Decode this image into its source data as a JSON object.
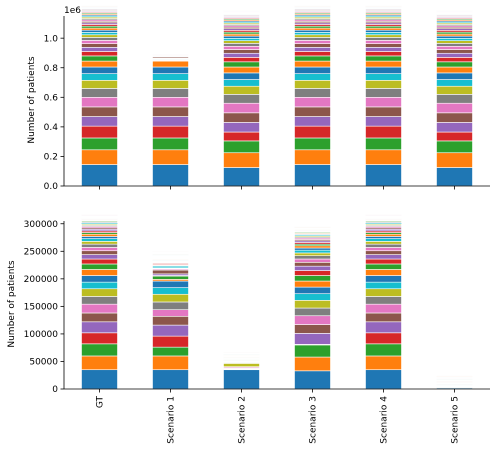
{
  "chart_data": [
    {
      "type": "bar",
      "stacked": true,
      "ylabel": "Number of patients",
      "ylim": [
        0,
        1150000
      ],
      "yticks": [
        0,
        200000,
        400000,
        600000,
        800000,
        1000000
      ],
      "ytick_labels": [
        "0.0",
        "0.2",
        "0.4",
        "0.6",
        "0.8",
        "1.0"
      ],
      "offset_text": "1e6",
      "categories": [
        "GT",
        "Scenario 1",
        "Scenario 2",
        "Scenario 3",
        "Scenario 4",
        "Scenario 5"
      ],
      "segments": [
        [
          145000,
          100000,
          80000,
          80000,
          65000,
          65000,
          65000,
          60000,
          55000,
          45000,
          45000,
          40000,
          35000,
          30000,
          28000,
          25000,
          22000,
          20000,
          18000,
          16000,
          15000,
          14000,
          13000,
          12000,
          11000,
          10000,
          10000,
          9000,
          9000,
          8000,
          8000,
          7000,
          7000,
          6000,
          6000,
          5000,
          5000,
          5000,
          4000,
          4000,
          4000,
          3000,
          3000,
          3000,
          2000,
          2000
        ],
        [
          145000,
          100000,
          80000,
          80000,
          65000,
          65000,
          65000,
          60000,
          55000,
          45000,
          45000,
          40000,
          1000,
          1000,
          1000,
          2000,
          2000,
          1000,
          1000,
          5000,
          1000,
          1000,
          3000,
          1000,
          1000,
          8000,
          2000,
          1000,
          1000,
          1000,
          1000,
          1000,
          1000,
          1000,
          1000,
          1000,
          1000,
          1000,
          1000,
          1000,
          1000,
          1000,
          1000,
          1000,
          1000,
          1000
        ],
        [
          125000,
          100000,
          80000,
          60000,
          65000,
          65000,
          65000,
          60000,
          55000,
          45000,
          45000,
          40000,
          35000,
          30000,
          28000,
          25000,
          22000,
          20000,
          18000,
          16000,
          15000,
          14000,
          13000,
          12000,
          11000,
          10000,
          10000,
          9000,
          9000,
          8000,
          8000,
          7000,
          7000,
          6000,
          6000,
          5000,
          5000,
          5000,
          4000,
          4000,
          4000,
          3000,
          3000,
          3000,
          2000,
          2000
        ],
        [
          145000,
          100000,
          80000,
          80000,
          65000,
          65000,
          65000,
          60000,
          55000,
          45000,
          45000,
          40000,
          35000,
          30000,
          28000,
          25000,
          22000,
          20000,
          18000,
          16000,
          15000,
          14000,
          13000,
          12000,
          11000,
          10000,
          10000,
          9000,
          9000,
          8000,
          8000,
          7000,
          7000,
          6000,
          6000,
          5000,
          5000,
          5000,
          4000,
          4000,
          4000,
          3000,
          3000,
          3000,
          2000,
          2000
        ],
        [
          145000,
          100000,
          80000,
          80000,
          65000,
          65000,
          65000,
          60000,
          55000,
          45000,
          45000,
          40000,
          35000,
          30000,
          28000,
          25000,
          22000,
          20000,
          18000,
          16000,
          15000,
          14000,
          13000,
          12000,
          11000,
          10000,
          10000,
          9000,
          9000,
          8000,
          8000,
          7000,
          7000,
          6000,
          6000,
          5000,
          5000,
          5000,
          4000,
          4000,
          4000,
          3000,
          3000,
          3000,
          2000,
          2000
        ],
        [
          125000,
          100000,
          80000,
          60000,
          65000,
          65000,
          65000,
          60000,
          55000,
          45000,
          45000,
          40000,
          35000,
          30000,
          28000,
          25000,
          22000,
          20000,
          18000,
          16000,
          15000,
          14000,
          13000,
          12000,
          11000,
          10000,
          10000,
          9000,
          9000,
          8000,
          8000,
          7000,
          7000,
          6000,
          6000,
          5000,
          5000,
          5000,
          4000,
          4000,
          4000,
          3000,
          3000,
          3000,
          2000,
          2000
        ]
      ]
    },
    {
      "type": "bar",
      "stacked": true,
      "ylabel": "Number of patients",
      "ylim": [
        0,
        305000
      ],
      "yticks": [
        0,
        50000,
        100000,
        150000,
        200000,
        250000,
        300000
      ],
      "ytick_labels": [
        "0",
        "50000",
        "100000",
        "150000",
        "200000",
        "250000",
        "300000"
      ],
      "categories": [
        "GT",
        "Scenario 1",
        "Scenario 2",
        "Scenario 3",
        "Scenario 4",
        "Scenario 5"
      ],
      "segments": [
        [
          35000,
          25000,
          22000,
          20000,
          20000,
          16000,
          16000,
          14000,
          14000,
          12000,
          12000,
          11000,
          10000,
          9000,
          8000,
          7000,
          6000,
          6000,
          5000,
          5000,
          4000,
          4000,
          3000,
          3000,
          3000,
          2500,
          2500,
          2000,
          2000,
          2000,
          1500,
          1500,
          1500,
          1000,
          1000,
          1000,
          1000,
          1000,
          1000,
          1000,
          800,
          800,
          800,
          800,
          800,
          800
        ],
        [
          35000,
          25000,
          16000,
          20000,
          20000,
          16000,
          12000,
          14000,
          14000,
          12000,
          12000,
          3000,
          6000,
          1000,
          3000,
          7000,
          2000,
          1000,
          1000,
          3000,
          1000,
          1000,
          1000,
          2000,
          1000,
          1000,
          1000,
          1000,
          1000,
          1000,
          1000,
          1000,
          1000,
          1000,
          1000,
          1000,
          1000,
          1000,
          1000,
          1000,
          800,
          800,
          800,
          800,
          800,
          800
        ],
        [
          35000,
          500,
          500,
          500,
          500,
          1000,
          2000,
          500,
          6000,
          500,
          500,
          500,
          500,
          500,
          500,
          500,
          1000,
          500,
          500,
          500,
          500,
          500,
          500,
          500,
          500,
          500,
          500,
          500,
          500,
          500,
          500,
          500,
          500,
          500,
          500,
          500,
          500,
          500,
          500,
          500,
          500,
          500,
          500,
          500,
          500,
          500
        ],
        [
          33000,
          25000,
          22000,
          1000,
          20000,
          16000,
          16000,
          14000,
          14000,
          12000,
          12000,
          11000,
          10000,
          9000,
          8000,
          7000,
          6000,
          6000,
          5000,
          5000,
          4000,
          4000,
          3000,
          3000,
          3000,
          2500,
          2500,
          2000,
          2000,
          2000,
          1500,
          1500,
          1500,
          1000,
          1000,
          1000,
          1000,
          1000,
          1000,
          1000,
          800,
          800,
          800,
          800,
          800,
          800
        ],
        [
          35000,
          25000,
          22000,
          20000,
          20000,
          16000,
          16000,
          14000,
          14000,
          12000,
          12000,
          11000,
          10000,
          9000,
          8000,
          7000,
          6000,
          6000,
          5000,
          5000,
          4000,
          4000,
          3000,
          3000,
          3000,
          2500,
          2500,
          2000,
          2000,
          2000,
          1500,
          1500,
          1500,
          1000,
          1000,
          1000,
          1000,
          1000,
          1000,
          1000,
          800,
          800,
          800,
          800,
          800,
          800
        ],
        [
          2000,
          500,
          500,
          500,
          500,
          1000,
          500,
          500,
          500,
          500,
          500,
          500,
          500,
          500,
          500,
          500,
          500,
          500,
          500,
          500,
          500,
          500,
          500,
          500,
          500,
          500,
          500,
          500,
          500,
          500,
          500,
          500,
          500,
          500,
          500,
          500,
          500,
          500,
          500,
          500,
          500,
          500,
          500,
          500,
          500,
          500
        ]
      ]
    }
  ],
  "colors": [
    "#1f77b4",
    "#ff7f0e",
    "#2ca02c",
    "#d62728",
    "#9467bd",
    "#8c564b",
    "#e377c2",
    "#7f7f7f",
    "#bcbd22",
    "#17becf"
  ]
}
